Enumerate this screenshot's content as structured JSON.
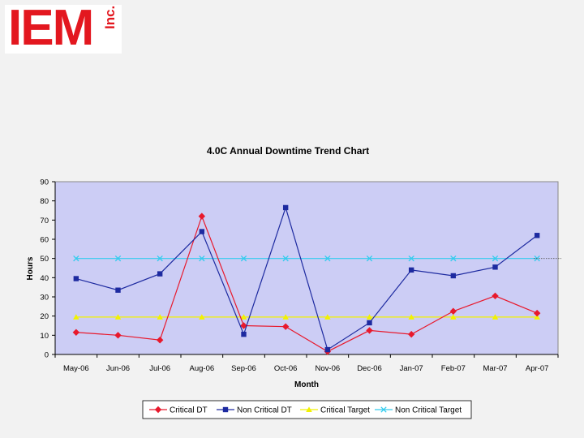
{
  "logo": {
    "main": "IEM",
    "sub": "Inc."
  },
  "colors": {
    "plot_bg": "#cccdf5",
    "critical_dt": "#e8192c",
    "non_critical_dt": "#1d2aa0",
    "critical_target": "#f2f200",
    "non_critical_target": "#33ccee"
  },
  "chart_data": {
    "type": "line",
    "title": "4.0C Annual Downtime Trend Chart",
    "xlabel": "Month",
    "ylabel": "Hours",
    "ylim": [
      0,
      90
    ],
    "yticks": [
      0,
      10,
      20,
      30,
      40,
      50,
      60,
      70,
      80,
      90
    ],
    "grid": false,
    "legend": "bottom",
    "categories": [
      "May-06",
      "Jun-06",
      "Jul-06",
      "Aug-06",
      "Sep-06",
      "Oct-06",
      "Nov-06",
      "Dec-06",
      "Jan-07",
      "Feb-07",
      "Mar-07",
      "Apr-07"
    ],
    "series": [
      {
        "name": "Critical DT",
        "marker": "diamond",
        "values": [
          11.5,
          10,
          7.5,
          72,
          15,
          14.5,
          1.5,
          12.5,
          10.5,
          22.5,
          30.5,
          21.5
        ]
      },
      {
        "name": "Non Critical DT",
        "marker": "square",
        "values": [
          39.5,
          33.5,
          42,
          64,
          10.5,
          76.5,
          2.5,
          16.5,
          44,
          41,
          45.5,
          62
        ]
      },
      {
        "name": "Critical Target",
        "marker": "triangle",
        "values": [
          19.5,
          19.5,
          19.5,
          19.5,
          19.5,
          19.5,
          19.5,
          19.5,
          19.5,
          19.5,
          19.5,
          19.5
        ]
      },
      {
        "name": "Non Critical Target",
        "marker": "x",
        "values": [
          50,
          50,
          50,
          50,
          50,
          50,
          50,
          50,
          50,
          50,
          50,
          50
        ]
      }
    ]
  }
}
